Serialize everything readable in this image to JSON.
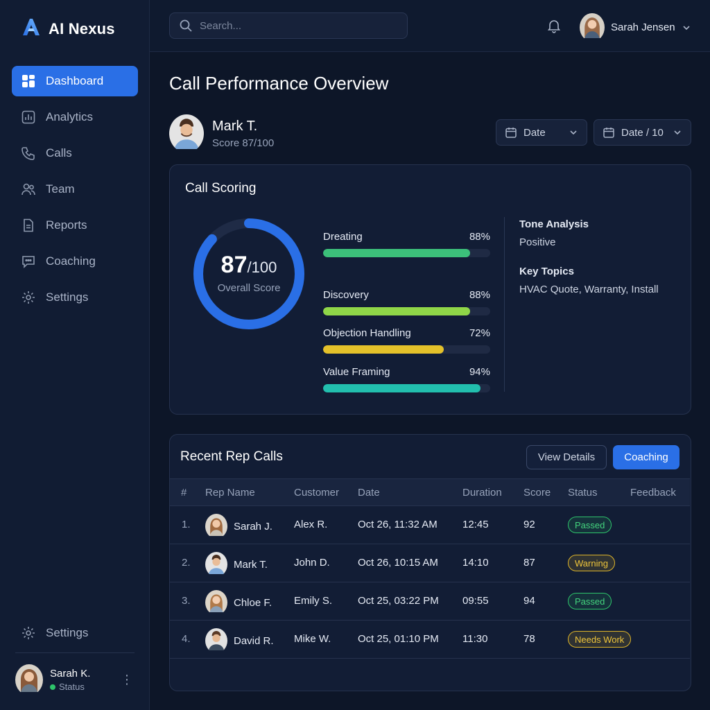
{
  "brand": {
    "name": "AI Nexus"
  },
  "sidebar": {
    "items": [
      {
        "label": "Dashboard",
        "icon": "dashboard-icon",
        "active": true
      },
      {
        "label": "Analytics",
        "icon": "analytics-icon"
      },
      {
        "label": "Calls",
        "icon": "phone-icon"
      },
      {
        "label": "Team",
        "icon": "team-icon"
      },
      {
        "label": "Reports",
        "icon": "reports-icon"
      },
      {
        "label": "Coaching",
        "icon": "chat-icon"
      },
      {
        "label": "Settings",
        "icon": "gear-icon"
      }
    ],
    "bottom_settings": "Settings",
    "user": {
      "name": "Sarah K.",
      "status": "Status"
    }
  },
  "topbar": {
    "search_placeholder": "Search...",
    "user_name": "Sarah Jensen"
  },
  "page": {
    "title": "Call Performance Overview",
    "rep": {
      "name": "Mark T.",
      "score_text": "Score 87/100"
    },
    "filters": [
      {
        "label": "Date"
      },
      {
        "label": "Date / 10"
      }
    ]
  },
  "call_scoring": {
    "title": "Call Scoring",
    "overall": {
      "score": "87",
      "out_of": "/100",
      "label": "Overall Score",
      "fraction": 0.87
    },
    "metrics": [
      {
        "label": "Dreating",
        "value": "88%",
        "fraction": 0.88,
        "color": "#3cc07a"
      },
      {
        "label": "Discovery",
        "value": "88%",
        "fraction": 0.88,
        "color": "#8fd648"
      },
      {
        "label": "Objection Handling",
        "value": "72%",
        "fraction": 0.72,
        "color": "#e4c12a"
      },
      {
        "label": "Value Framing",
        "value": "94%",
        "fraction": 0.94,
        "color": "#22bfae"
      }
    ],
    "tone": {
      "title": "Tone Analysis",
      "value": "Positive"
    },
    "topics": {
      "title": "Key Topics",
      "value": "HVAC Quote, Warranty, Install"
    }
  },
  "recent_calls": {
    "title": "Recent Rep Calls",
    "view_details": "View Details",
    "coaching": "Coaching",
    "columns": [
      "#",
      "Rep Name",
      "Customer",
      "Date",
      "Duration",
      "Score",
      "Status",
      "Feedback"
    ],
    "rows": [
      {
        "idx": "1.",
        "rep": "Sarah J.",
        "customer": "Alex R.",
        "date": "Oct 26, 11:32 AM",
        "duration": "12:45",
        "score": "92",
        "status": "Passed",
        "status_type": "passed"
      },
      {
        "idx": "2.",
        "rep": "Mark T.",
        "customer": "John D.",
        "date": "Oct 26, 10:15 AM",
        "duration": "14:10",
        "score": "87",
        "status": "Warning",
        "status_type": "warning"
      },
      {
        "idx": "3.",
        "rep": "Chloe F.",
        "customer": "Emily S.",
        "date": "Oct 25, 03:22 PM",
        "duration": "09:55",
        "score": "94",
        "status": "Passed",
        "status_type": "passed"
      },
      {
        "idx": "4.",
        "rep": "David R.",
        "customer": "Mike W.",
        "date": "Oct 25, 01:10 PM",
        "duration": "11:30",
        "score": "78",
        "status": "Needs Work",
        "status_type": "warning"
      }
    ]
  },
  "colors": {
    "accent": "#2a6fe6",
    "passed": "#2ec46b",
    "warning": "#e0b62a"
  }
}
